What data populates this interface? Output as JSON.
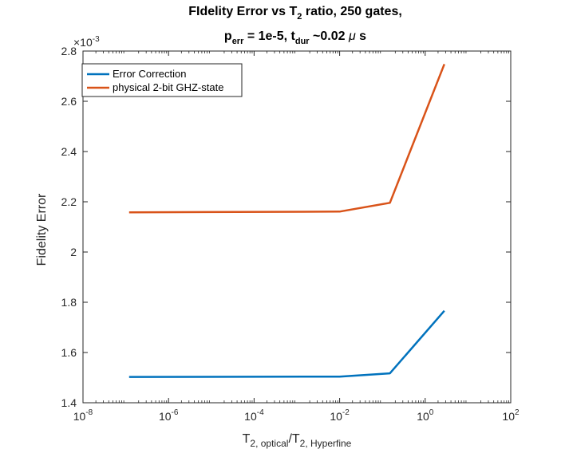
{
  "chart_data": {
    "type": "line",
    "title_line1": {
      "pre": "FIdelity Error vs T",
      "sub": "2",
      "post": " ratio, 250 gates,"
    },
    "title_line2": {
      "p": "p",
      "p_sub": "err",
      "mid": " = 1e-5, t",
      "t_sub": "dur",
      "post": " ~0.02 ",
      "mu": "μ",
      "unit": " s"
    },
    "xlabel": {
      "t1": "T",
      "sub1": "2, optical",
      "slash": "/T",
      "sub2": "2, Hyperfine"
    },
    "ylabel": "Fidelity Error",
    "y_multiplier": {
      "base": "×10",
      "exp": "-3"
    },
    "x_scale": "log",
    "xlim": [
      1e-08,
      100
    ],
    "ylim": [
      1.4,
      2.8
    ],
    "grid": false,
    "legend_position": "top-left",
    "x_ticks": [
      {
        "value": 1e-08,
        "base": "10",
        "exp": "-8"
      },
      {
        "value": 1e-06,
        "base": "10",
        "exp": "-6"
      },
      {
        "value": 0.0001,
        "base": "10",
        "exp": "-4"
      },
      {
        "value": 0.01,
        "base": "10",
        "exp": "-2"
      },
      {
        "value": 1,
        "base": "10",
        "exp": "0"
      },
      {
        "value": 100,
        "base": "10",
        "exp": "2"
      }
    ],
    "y_ticks": [
      {
        "value": 1.4,
        "label": "1.4"
      },
      {
        "value": 1.6,
        "label": "1.6"
      },
      {
        "value": 1.8,
        "label": "1.8"
      },
      {
        "value": 2.0,
        "label": "2"
      },
      {
        "value": 2.2,
        "label": "2.2"
      },
      {
        "value": 2.4,
        "label": "2.4"
      },
      {
        "value": 2.6,
        "label": "2.6"
      },
      {
        "value": 2.8,
        "label": "2.8"
      }
    ],
    "x": [
      1.2e-07,
      0.01,
      0.15,
      2.8
    ],
    "series": [
      {
        "name": "Error Correction",
        "color": "#0072BD",
        "values": [
          1.503,
          1.504,
          1.517,
          1.766
        ]
      },
      {
        "name": "physical 2-bit GHZ-state",
        "color": "#D95319",
        "values": [
          2.158,
          2.161,
          2.196,
          2.748
        ]
      }
    ]
  }
}
